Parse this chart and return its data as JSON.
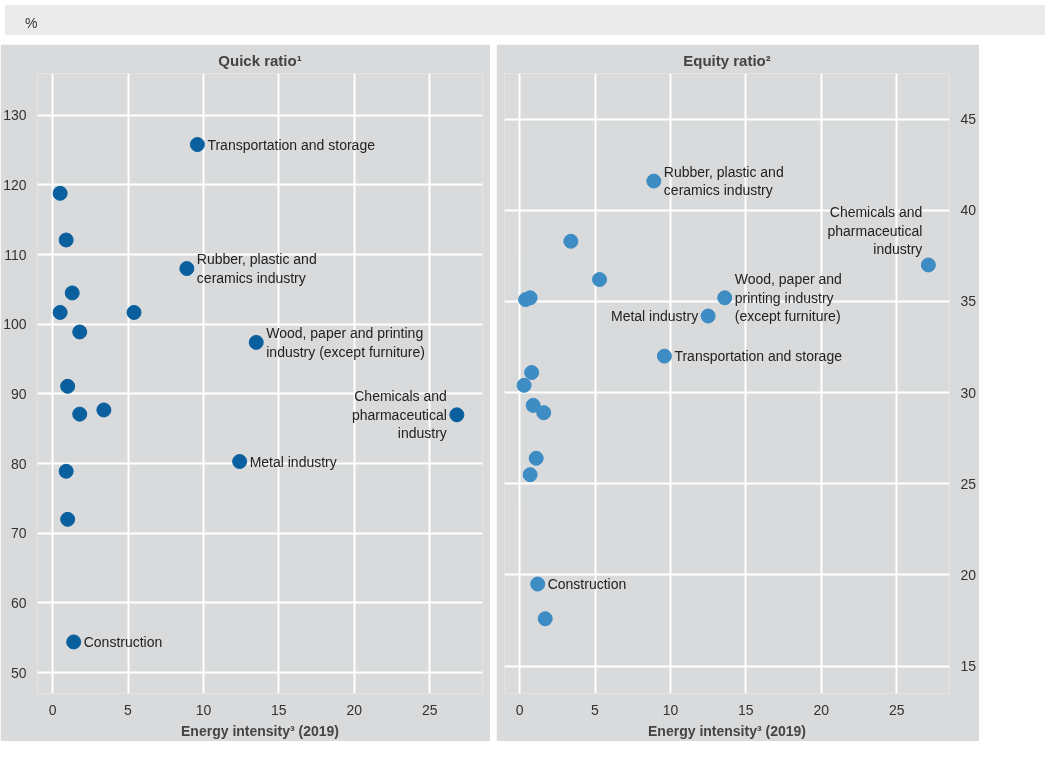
{
  "chart_data": [
    {
      "type": "scatter",
      "title": "Quick ratio¹",
      "ylabel": "%",
      "xlabel": "Energy intensity³ (2019)",
      "marker": "circle",
      "grid": true,
      "xlim": [
        -1,
        28.5
      ],
      "xticks": [
        0,
        5,
        10,
        15,
        20,
        25
      ],
      "ylim": [
        47,
        136
      ],
      "yticks": [
        50,
        60,
        70,
        80,
        90,
        100,
        110,
        120,
        130
      ],
      "series": [
        {
          "color": "#0a5f9e",
          "x": [
            9.6,
            0.5,
            0.9,
            8.9,
            1.3,
            0.5,
            5.4,
            1.8,
            13.5,
            1.0,
            1.8,
            3.4,
            26.8,
            12.4,
            0.9,
            1.0,
            1.4
          ],
          "values": [
            125.8,
            118.8,
            112.1,
            108.0,
            104.5,
            101.7,
            101.7,
            98.9,
            97.4,
            91.1,
            87.1,
            87.7,
            87.0,
            80.3,
            78.9,
            72.0,
            54.4
          ]
        }
      ],
      "annotations": [
        {
          "text": "Transportation and storage",
          "x": 9.6,
          "y": 125.8
        },
        {
          "text": "Rubber, plastic and\nceramics industry",
          "x": 8.9,
          "y": 108.0
        },
        {
          "text": "Wood, paper and printing\nindustry (except furniture)",
          "x": 13.5,
          "y": 97.4
        },
        {
          "text": "Chemicals and\npharmaceutical\nindustry",
          "x": 26.8,
          "y": 87.0
        },
        {
          "text": "Metal industry",
          "x": 12.4,
          "y": 80.3
        },
        {
          "text": "Construction",
          "x": 1.4,
          "y": 54.4
        }
      ]
    },
    {
      "type": "scatter",
      "title": "Equity ratio²",
      "xlabel": "Energy intensity³ (2019)",
      "marker": "circle",
      "grid": true,
      "xlim": [
        -1,
        28.5
      ],
      "xticks": [
        0,
        5,
        10,
        15,
        20,
        25
      ],
      "ylim": [
        13.5,
        47.5
      ],
      "yticks": [
        15,
        20,
        25,
        30,
        35,
        40,
        45
      ],
      "series": [
        {
          "color": "#3d8cc4",
          "x": [
            8.9,
            3.4,
            5.3,
            0.4,
            0.7,
            13.6,
            12.5,
            27.1,
            9.6,
            0.8,
            0.3,
            0.9,
            1.6,
            1.1,
            0.7,
            1.2,
            1.7
          ],
          "values": [
            41.6,
            38.3,
            36.2,
            35.1,
            35.2,
            35.2,
            34.2,
            37.0,
            32.0,
            31.1,
            30.4,
            29.3,
            28.9,
            26.4,
            25.5,
            19.5,
            17.6
          ]
        }
      ],
      "annotations": [
        {
          "text": "Rubber, plastic and\nceramics industry",
          "x": 8.9,
          "y": 41.6
        },
        {
          "text": "Wood, paper and\nprinting industry\n(except furniture)",
          "x": 13.6,
          "y": 35.2
        },
        {
          "text": "Chemicals and\npharmaceutical\nindustry",
          "x": 27.1,
          "y": 37.0
        },
        {
          "text": "Metal industry",
          "x": 12.5,
          "y": 34.2
        },
        {
          "text": "Transportation and storage",
          "x": 9.6,
          "y": 32.0
        },
        {
          "text": "Construction",
          "x": 1.2,
          "y": 19.5
        }
      ]
    }
  ]
}
